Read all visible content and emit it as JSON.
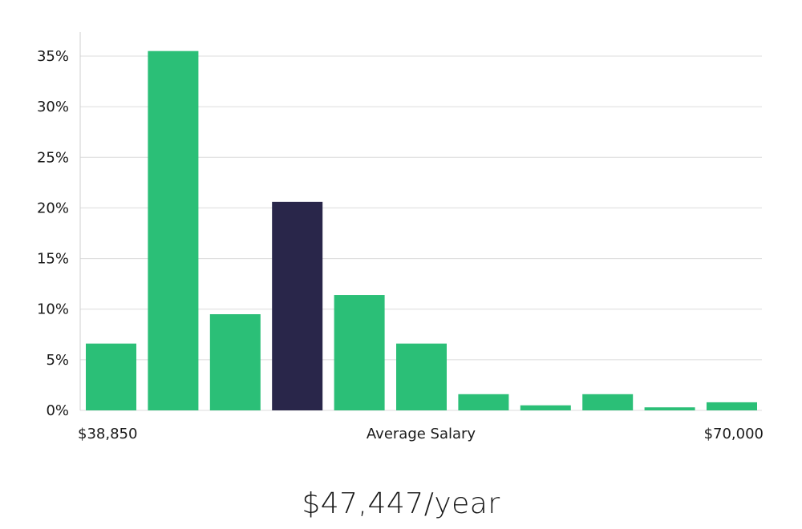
{
  "chart_data": {
    "type": "bar",
    "bins": [
      {
        "value": 6.6,
        "highlight": false
      },
      {
        "value": 35.5,
        "highlight": false
      },
      {
        "value": 9.5,
        "highlight": false
      },
      {
        "value": 20.6,
        "highlight": true
      },
      {
        "value": 11.4,
        "highlight": false
      },
      {
        "value": 6.6,
        "highlight": false
      },
      {
        "value": 1.6,
        "highlight": false
      },
      {
        "value": 0.5,
        "highlight": false
      },
      {
        "value": 1.6,
        "highlight": false
      },
      {
        "value": 0.3,
        "highlight": false
      },
      {
        "value": 0.8,
        "highlight": false
      }
    ],
    "ylim": [
      0,
      37
    ],
    "y_ticks": [
      {
        "value": 0,
        "label": "0%"
      },
      {
        "value": 5,
        "label": "5%"
      },
      {
        "value": 10,
        "label": "10%"
      },
      {
        "value": 15,
        "label": "15%"
      },
      {
        "value": 20,
        "label": "20%"
      },
      {
        "value": 25,
        "label": "25%"
      },
      {
        "value": 30,
        "label": "30%"
      },
      {
        "value": 35,
        "label": "35%"
      }
    ],
    "x_min_label": "$38,850",
    "x_max_label": "$70,000",
    "xlabel": "Average Salary",
    "grid": true,
    "colors": {
      "bar": "#2bbf77",
      "highlight": "#29264a",
      "grid": "#dcdcdc",
      "axis": "#cfcfcf"
    }
  },
  "salary_text": "$47,447/year"
}
